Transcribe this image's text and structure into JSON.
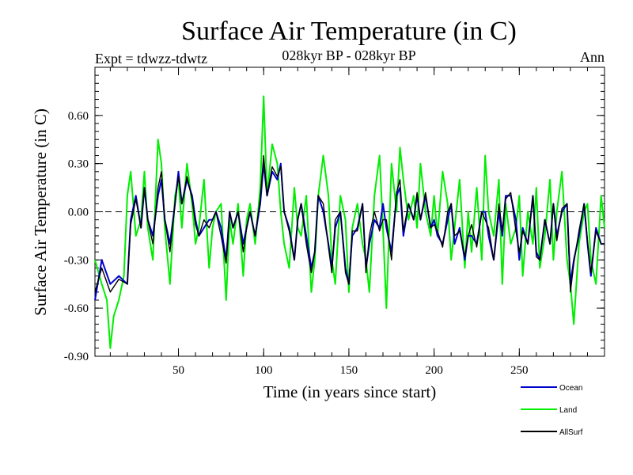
{
  "chart_data": {
    "type": "line",
    "title": "Surface Air Temperature (in C)",
    "subtitle": "028kyr BP - 028kyr BP",
    "left_label": "Expt = tdwzz-tdwtz",
    "right_label": "Ann",
    "xlabel": "Time (in years since start)",
    "ylabel": "Surface Air Temperature (in C)",
    "xlim": [
      1,
      300
    ],
    "ylim": [
      -0.9,
      0.9
    ],
    "x_ticks": [
      50,
      100,
      150,
      200,
      250
    ],
    "x_tick_labels": [
      "50",
      "100",
      "150",
      "200",
      "250"
    ],
    "y_ticks": [
      -0.9,
      -0.6,
      -0.3,
      0.0,
      0.3,
      0.6
    ],
    "y_tick_labels": [
      "-0.90",
      "-0.60",
      "-0.30",
      "0.00",
      "0.30",
      "0.60"
    ],
    "reference_line": 0.0,
    "grid": false,
    "legend_position": "bottom-right",
    "series": [
      {
        "name": "Ocean",
        "color": "#0000cc",
        "x": [
          1,
          5,
          10,
          15,
          20,
          22,
          25,
          28,
          30,
          32,
          35,
          38,
          40,
          42,
          45,
          48,
          50,
          52,
          55,
          58,
          60,
          62,
          65,
          68,
          70,
          72,
          75,
          78,
          80,
          82,
          85,
          88,
          90,
          92,
          95,
          98,
          100,
          102,
          105,
          108,
          110,
          112,
          115,
          118,
          120,
          122,
          125,
          128,
          130,
          132,
          135,
          138,
          140,
          142,
          145,
          148,
          150,
          152,
          155,
          158,
          160,
          162,
          165,
          168,
          170,
          172,
          175,
          178,
          180,
          182,
          185,
          188,
          190,
          192,
          195,
          198,
          200,
          202,
          205,
          208,
          210,
          212,
          215,
          218,
          220,
          222,
          225,
          228,
          230,
          232,
          235,
          238,
          240,
          242,
          245,
          248,
          250,
          252,
          255,
          258,
          260,
          262,
          265,
          268,
          270,
          272,
          275,
          278,
          280,
          282,
          285,
          288,
          290,
          292,
          295,
          298,
          300
        ],
        "y": [
          -0.55,
          -0.3,
          -0.45,
          -0.4,
          -0.45,
          -0.05,
          0.1,
          -0.1,
          0.15,
          -0.05,
          -0.15,
          0.1,
          0.2,
          -0.05,
          -0.2,
          0.05,
          0.25,
          0.05,
          0.2,
          0.1,
          -0.05,
          -0.15,
          -0.1,
          -0.05,
          -0.05,
          0.0,
          -0.1,
          -0.3,
          0.0,
          -0.1,
          0.0,
          -0.2,
          -0.1,
          0.0,
          -0.15,
          0.05,
          0.3,
          0.1,
          0.25,
          0.2,
          0.3,
          0.0,
          -0.1,
          -0.3,
          -0.05,
          0.05,
          -0.15,
          -0.35,
          -0.25,
          0.1,
          0.0,
          -0.2,
          -0.35,
          -0.1,
          0.0,
          -0.35,
          -0.45,
          -0.15,
          -0.1,
          0.05,
          -0.35,
          -0.2,
          -0.05,
          -0.1,
          0.05,
          -0.1,
          -0.25,
          0.1,
          0.15,
          -0.15,
          0.05,
          -0.05,
          0.1,
          -0.05,
          0.1,
          -0.1,
          -0.05,
          -0.15,
          -0.2,
          -0.05,
          0.05,
          -0.2,
          -0.1,
          -0.3,
          -0.15,
          -0.15,
          -0.2,
          0.0,
          0.0,
          -0.15,
          -0.3,
          0.0,
          -0.15,
          0.1,
          0.1,
          -0.05,
          -0.3,
          -0.1,
          -0.2,
          0.1,
          -0.25,
          -0.3,
          -0.05,
          -0.2,
          0.05,
          -0.15,
          0.0,
          0.05,
          -0.45,
          -0.3,
          -0.15,
          0.05,
          -0.2,
          -0.4,
          -0.1,
          -0.2,
          -0.2
        ]
      },
      {
        "name": "Land",
        "color": "#00ee00",
        "x": [
          1,
          5,
          8,
          10,
          12,
          15,
          18,
          20,
          22,
          25,
          28,
          30,
          32,
          35,
          38,
          40,
          42,
          45,
          48,
          50,
          52,
          55,
          58,
          60,
          62,
          65,
          68,
          70,
          72,
          75,
          78,
          80,
          82,
          85,
          88,
          90,
          92,
          95,
          98,
          100,
          102,
          105,
          108,
          110,
          112,
          115,
          118,
          120,
          122,
          125,
          128,
          130,
          132,
          135,
          138,
          140,
          142,
          145,
          148,
          150,
          152,
          155,
          158,
          160,
          162,
          165,
          168,
          170,
          172,
          175,
          178,
          180,
          182,
          185,
          188,
          190,
          192,
          195,
          198,
          200,
          202,
          205,
          208,
          210,
          212,
          215,
          218,
          220,
          222,
          225,
          228,
          230,
          232,
          235,
          238,
          240,
          242,
          245,
          248,
          250,
          252,
          255,
          258,
          260,
          262,
          265,
          268,
          270,
          272,
          275,
          278,
          280,
          282,
          285,
          288,
          290,
          292,
          295,
          298,
          300
        ],
        "y": [
          -0.3,
          -0.45,
          -0.55,
          -0.85,
          -0.65,
          -0.55,
          -0.4,
          0.1,
          0.25,
          -0.15,
          -0.05,
          0.25,
          -0.1,
          -0.3,
          0.45,
          0.3,
          -0.1,
          -0.45,
          0.1,
          0.2,
          -0.1,
          0.3,
          0.05,
          -0.2,
          -0.1,
          0.2,
          -0.35,
          -0.1,
          0.0,
          0.05,
          -0.55,
          -0.05,
          -0.2,
          0.05,
          -0.4,
          -0.05,
          0.05,
          -0.2,
          0.15,
          0.72,
          0.1,
          0.42,
          0.3,
          0.0,
          -0.2,
          -0.35,
          0.15,
          -0.1,
          -0.15,
          0.1,
          -0.5,
          -0.3,
          0.1,
          0.35,
          0.1,
          -0.3,
          -0.45,
          0.1,
          -0.05,
          -0.5,
          -0.1,
          0.05,
          -0.2,
          -0.3,
          -0.5,
          0.1,
          0.35,
          -0.1,
          -0.6,
          0.3,
          0.0,
          0.4,
          0.2,
          -0.05,
          0.1,
          -0.1,
          0.3,
          0.0,
          -0.15,
          0.1,
          -0.15,
          0.25,
          0.05,
          -0.3,
          -0.1,
          0.2,
          -0.35,
          0.0,
          -0.25,
          0.15,
          -0.3,
          0.35,
          0.0,
          -0.15,
          0.2,
          -0.45,
          0.05,
          -0.2,
          -0.1,
          0.1,
          -0.4,
          0.0,
          -0.2,
          0.15,
          -0.35,
          -0.15,
          0.2,
          -0.3,
          0.0,
          0.25,
          -0.3,
          -0.45,
          -0.7,
          -0.2,
          0.0,
          0.05,
          -0.3,
          -0.45,
          0.1,
          -0.1
        ]
      },
      {
        "name": "AllSurf",
        "color": "#000000",
        "x": [
          1,
          5,
          10,
          15,
          20,
          22,
          25,
          28,
          30,
          32,
          35,
          38,
          40,
          42,
          45,
          48,
          50,
          52,
          55,
          58,
          60,
          62,
          65,
          68,
          70,
          72,
          75,
          78,
          80,
          82,
          85,
          88,
          90,
          92,
          95,
          98,
          100,
          102,
          105,
          108,
          110,
          112,
          115,
          118,
          120,
          122,
          125,
          128,
          130,
          132,
          135,
          138,
          140,
          142,
          145,
          148,
          150,
          152,
          155,
          158,
          160,
          162,
          165,
          168,
          170,
          172,
          175,
          178,
          180,
          182,
          185,
          188,
          190,
          192,
          195,
          198,
          200,
          202,
          205,
          208,
          210,
          212,
          215,
          218,
          220,
          222,
          225,
          228,
          230,
          232,
          235,
          238,
          240,
          242,
          245,
          248,
          250,
          252,
          255,
          258,
          260,
          262,
          265,
          268,
          270,
          272,
          275,
          278,
          280,
          282,
          285,
          288,
          290,
          292,
          295,
          298,
          300
        ],
        "y": [
          -0.5,
          -0.35,
          -0.5,
          -0.42,
          -0.45,
          -0.08,
          0.08,
          -0.1,
          0.15,
          -0.05,
          -0.2,
          0.15,
          0.25,
          -0.05,
          -0.25,
          0.05,
          0.22,
          0.05,
          0.22,
          0.08,
          -0.08,
          -0.15,
          -0.05,
          -0.1,
          -0.05,
          0.0,
          -0.15,
          -0.32,
          0.0,
          -0.1,
          0.0,
          -0.25,
          -0.1,
          0.0,
          -0.15,
          0.08,
          0.35,
          0.1,
          0.28,
          0.22,
          0.28,
          0.0,
          -0.12,
          -0.3,
          -0.05,
          0.05,
          -0.2,
          -0.38,
          -0.25,
          0.1,
          0.05,
          -0.22,
          -0.38,
          -0.05,
          0.0,
          -0.38,
          -0.45,
          -0.12,
          -0.12,
          0.05,
          -0.38,
          -0.15,
          0.0,
          -0.12,
          -0.05,
          -0.05,
          -0.3,
          0.12,
          0.2,
          -0.12,
          0.05,
          -0.05,
          0.12,
          -0.05,
          0.12,
          -0.1,
          -0.08,
          -0.12,
          -0.22,
          0.0,
          0.05,
          -0.15,
          -0.12,
          -0.28,
          -0.15,
          -0.08,
          -0.22,
          0.0,
          -0.05,
          -0.1,
          -0.3,
          0.05,
          -0.12,
          0.08,
          0.12,
          -0.12,
          -0.25,
          -0.12,
          -0.2,
          0.1,
          -0.28,
          -0.3,
          -0.05,
          -0.2,
          0.05,
          -0.18,
          0.02,
          0.05,
          -0.5,
          -0.32,
          -0.12,
          0.05,
          -0.18,
          -0.38,
          -0.12,
          -0.2,
          -0.2
        ]
      }
    ]
  }
}
